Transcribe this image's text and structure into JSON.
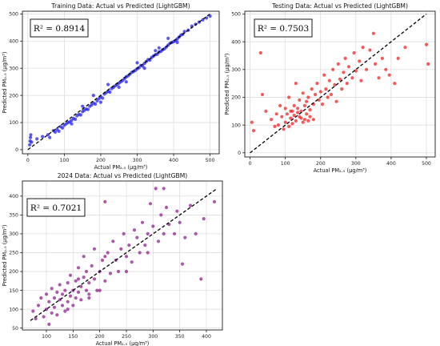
{
  "chart_data": [
    {
      "id": "train",
      "type": "scatter",
      "title": "Training Data: Actual vs Predicted (LightGBM)",
      "xlabel": "Actual PM₂.₅ (μg/m³)",
      "ylabel": "Predicted PM₂.₅ (μg/m³)",
      "r2_label": "R² = 0.8914",
      "xlim": [
        -15,
        525
      ],
      "ylim": [
        -15,
        510
      ],
      "xticks": [
        0,
        100,
        200,
        300,
        400,
        500
      ],
      "yticks": [
        0,
        100,
        200,
        300,
        400,
        500
      ],
      "grid": true,
      "point_color": "#1a1aee",
      "reference_line": {
        "x": [
          0,
          500
        ],
        "y": [
          0,
          500
        ]
      },
      "points": [
        [
          5,
          18
        ],
        [
          6,
          32
        ],
        [
          7,
          45
        ],
        [
          8,
          55
        ],
        [
          10,
          28
        ],
        [
          25,
          40
        ],
        [
          40,
          48
        ],
        [
          55,
          55
        ],
        [
          60,
          45
        ],
        [
          70,
          70
        ],
        [
          75,
          65
        ],
        [
          80,
          75
        ],
        [
          85,
          68
        ],
        [
          90,
          85
        ],
        [
          95,
          80
        ],
        [
          100,
          90
        ],
        [
          105,
          95
        ],
        [
          110,
          100
        ],
        [
          115,
          102
        ],
        [
          120,
          108
        ],
        [
          125,
          115
        ],
        [
          130,
          112
        ],
        [
          135,
          125
        ],
        [
          140,
          130
        ],
        [
          145,
          128
        ],
        [
          150,
          140
        ],
        [
          155,
          145
        ],
        [
          160,
          150
        ],
        [
          165,
          148
        ],
        [
          170,
          160
        ],
        [
          175,
          165
        ],
        [
          180,
          172
        ],
        [
          185,
          168
        ],
        [
          190,
          180
        ],
        [
          195,
          188
        ],
        [
          200,
          195
        ],
        [
          205,
          190
        ],
        [
          210,
          205
        ],
        [
          215,
          210
        ],
        [
          220,
          215
        ],
        [
          225,
          212
        ],
        [
          230,
          225
        ],
        [
          235,
          230
        ],
        [
          240,
          235
        ],
        [
          245,
          240
        ],
        [
          250,
          245
        ],
        [
          255,
          250
        ],
        [
          260,
          255
        ],
        [
          265,
          262
        ],
        [
          270,
          268
        ],
        [
          275,
          272
        ],
        [
          280,
          278
        ],
        [
          285,
          285
        ],
        [
          290,
          288
        ],
        [
          295,
          292
        ],
        [
          300,
          298
        ],
        [
          305,
          302
        ],
        [
          310,
          310
        ],
        [
          315,
          308
        ],
        [
          320,
          318
        ],
        [
          325,
          325
        ],
        [
          330,
          332
        ],
        [
          335,
          330
        ],
        [
          340,
          340
        ],
        [
          345,
          345
        ],
        [
          350,
          350
        ],
        [
          355,
          352
        ],
        [
          360,
          360
        ],
        [
          365,
          362
        ],
        [
          370,
          368
        ],
        [
          375,
          372
        ],
        [
          380,
          378
        ],
        [
          385,
          385
        ],
        [
          390,
          392
        ],
        [
          395,
          395
        ],
        [
          400,
          398
        ],
        [
          405,
          402
        ],
        [
          410,
          408
        ],
        [
          415,
          415
        ],
        [
          420,
          422
        ],
        [
          425,
          425
        ],
        [
          430,
          435
        ],
        [
          440,
          440
        ],
        [
          450,
          455
        ],
        [
          460,
          462
        ],
        [
          470,
          470
        ],
        [
          480,
          478
        ],
        [
          490,
          485
        ],
        [
          500,
          492
        ],
        [
          385,
          410
        ],
        [
          350,
          365
        ],
        [
          300,
          320
        ],
        [
          250,
          230
        ],
        [
          200,
          175
        ],
        [
          150,
          160
        ],
        [
          120,
          95
        ],
        [
          180,
          200
        ],
        [
          220,
          240
        ],
        [
          270,
          250
        ],
        [
          320,
          300
        ],
        [
          360,
          375
        ],
        [
          410,
          395
        ]
      ]
    },
    {
      "id": "test",
      "type": "scatter",
      "title": "Testing Data: Actual vs Predicted (LightGBM)",
      "xlabel": "Actual PM₂.₅ (μg/m³)",
      "ylabel": "Predicted PM₂.₅ (μg/m³)",
      "r2_label": "R² = 0.7503",
      "xlim": [
        -15,
        525
      ],
      "ylim": [
        -15,
        510
      ],
      "xticks": [
        0,
        100,
        200,
        300,
        400,
        500
      ],
      "yticks": [
        0,
        100,
        200,
        300,
        400,
        500
      ],
      "grid": true,
      "point_color": "#ee1c1c",
      "reference_line": {
        "x": [
          0,
          500
        ],
        "y": [
          0,
          500
        ]
      },
      "points": [
        [
          5,
          110
        ],
        [
          10,
          80
        ],
        [
          30,
          360
        ],
        [
          35,
          210
        ],
        [
          45,
          150
        ],
        [
          60,
          120
        ],
        [
          70,
          95
        ],
        [
          75,
          140
        ],
        [
          80,
          100
        ],
        [
          85,
          170
        ],
        [
          90,
          130
        ],
        [
          95,
          85
        ],
        [
          100,
          110
        ],
        [
          100,
          160
        ],
        [
          105,
          140
        ],
        [
          110,
          95
        ],
        [
          110,
          200
        ],
        [
          115,
          125
        ],
        [
          120,
          150
        ],
        [
          120,
          105
        ],
        [
          125,
          170
        ],
        [
          125,
          135
        ],
        [
          130,
          115
        ],
        [
          130,
          250
        ],
        [
          135,
          160
        ],
        [
          140,
          130
        ],
        [
          140,
          190
        ],
        [
          145,
          150
        ],
        [
          150,
          110
        ],
        [
          150,
          215
        ],
        [
          155,
          170
        ],
        [
          160,
          140
        ],
        [
          160,
          185
        ],
        [
          165,
          200
        ],
        [
          170,
          155
        ],
        [
          175,
          230
        ],
        [
          180,
          175
        ],
        [
          180,
          120
        ],
        [
          185,
          210
        ],
        [
          190,
          250
        ],
        [
          195,
          190
        ],
        [
          200,
          220
        ],
        [
          205,
          175
        ],
        [
          210,
          280
        ],
        [
          215,
          230
        ],
        [
          220,
          200
        ],
        [
          225,
          260
        ],
        [
          230,
          210
        ],
        [
          235,
          300
        ],
        [
          240,
          245
        ],
        [
          245,
          185
        ],
        [
          250,
          320
        ],
        [
          255,
          265
        ],
        [
          260,
          230
        ],
        [
          265,
          290
        ],
        [
          270,
          340
        ],
        [
          275,
          250
        ],
        [
          280,
          310
        ],
        [
          290,
          270
        ],
        [
          295,
          360
        ],
        [
          300,
          295
        ],
        [
          310,
          330
        ],
        [
          315,
          260
        ],
        [
          320,
          380
        ],
        [
          330,
          300
        ],
        [
          340,
          370
        ],
        [
          350,
          430
        ],
        [
          355,
          320
        ],
        [
          365,
          270
        ],
        [
          375,
          340
        ],
        [
          385,
          300
        ],
        [
          395,
          280
        ],
        [
          410,
          250
        ],
        [
          420,
          340
        ],
        [
          440,
          380
        ],
        [
          500,
          390
        ],
        [
          505,
          320
        ],
        [
          170,
          130
        ],
        [
          135,
          145
        ],
        [
          145,
          125
        ],
        [
          155,
          120
        ],
        [
          165,
          115
        ],
        [
          115,
          150
        ]
      ]
    },
    {
      "id": "y2024",
      "type": "scatter",
      "title": "2024 Data: Actual vs Predicted (LightGBM)",
      "xlabel": "Actual PM₂.₅ (μg/m³)",
      "ylabel": "Predicted PM₂.₅ (μg/m³)",
      "r2_label": "R² = 0.7021",
      "xlim": [
        55,
        430
      ],
      "ylim": [
        45,
        440
      ],
      "xticks": [
        100,
        150,
        200,
        250,
        300,
        350,
        400
      ],
      "yticks": [
        50,
        100,
        150,
        200,
        250,
        300,
        350,
        400
      ],
      "grid": true,
      "point_color": "#8b1a8b",
      "reference_line": {
        "x": [
          70,
          420
        ],
        "y": [
          70,
          420
        ]
      },
      "points": [
        [
          75,
          95
        ],
        [
          80,
          75
        ],
        [
          85,
          110
        ],
        [
          90,
          130
        ],
        [
          95,
          80
        ],
        [
          100,
          100
        ],
        [
          100,
          140
        ],
        [
          105,
          120
        ],
        [
          105,
          60
        ],
        [
          110,
          90
        ],
        [
          110,
          155
        ],
        [
          115,
          130
        ],
        [
          115,
          105
        ],
        [
          120,
          145
        ],
        [
          120,
          85
        ],
        [
          125,
          125
        ],
        [
          125,
          165
        ],
        [
          130,
          110
        ],
        [
          130,
          140
        ],
        [
          135,
          150
        ],
        [
          135,
          95
        ],
        [
          140,
          170
        ],
        [
          140,
          120
        ],
        [
          145,
          135
        ],
        [
          145,
          190
        ],
        [
          150,
          150
        ],
        [
          150,
          110
        ],
        [
          155,
          175
        ],
        [
          155,
          130
        ],
        [
          160,
          145
        ],
        [
          160,
          210
        ],
        [
          165,
          160
        ],
        [
          165,
          125
        ],
        [
          170,
          185
        ],
        [
          170,
          240
        ],
        [
          175,
          150
        ],
        [
          175,
          200
        ],
        [
          180,
          170
        ],
        [
          180,
          130
        ],
        [
          185,
          215
        ],
        [
          190,
          180
        ],
        [
          190,
          260
        ],
        [
          195,
          150
        ],
        [
          200,
          200
        ],
        [
          205,
          230
        ],
        [
          210,
          175
        ],
        [
          215,
          250
        ],
        [
          220,
          195
        ],
        [
          225,
          280
        ],
        [
          230,
          230
        ],
        [
          235,
          200
        ],
        [
          240,
          260
        ],
        [
          245,
          300
        ],
        [
          250,
          240
        ],
        [
          255,
          270
        ],
        [
          260,
          225
        ],
        [
          265,
          310
        ],
        [
          270,
          290
        ],
        [
          275,
          250
        ],
        [
          280,
          330
        ],
        [
          285,
          270
        ],
        [
          290,
          300
        ],
        [
          295,
          380
        ],
        [
          300,
          320
        ],
        [
          305,
          420
        ],
        [
          310,
          280
        ],
        [
          315,
          350
        ],
        [
          320,
          300
        ],
        [
          325,
          370
        ],
        [
          330,
          325
        ],
        [
          340,
          300
        ],
        [
          345,
          360
        ],
        [
          350,
          330
        ],
        [
          355,
          220
        ],
        [
          360,
          290
        ],
        [
          370,
          375
        ],
        [
          380,
          300
        ],
        [
          390,
          180
        ],
        [
          395,
          340
        ],
        [
          415,
          385
        ],
        [
          200,
          150
        ],
        [
          180,
          140
        ],
        [
          140,
          100
        ],
        [
          160,
          180
        ],
        [
          210,
          240
        ],
        [
          250,
          200
        ],
        [
          290,
          250
        ],
        [
          320,
          420
        ],
        [
          210,
          385
        ]
      ]
    }
  ]
}
